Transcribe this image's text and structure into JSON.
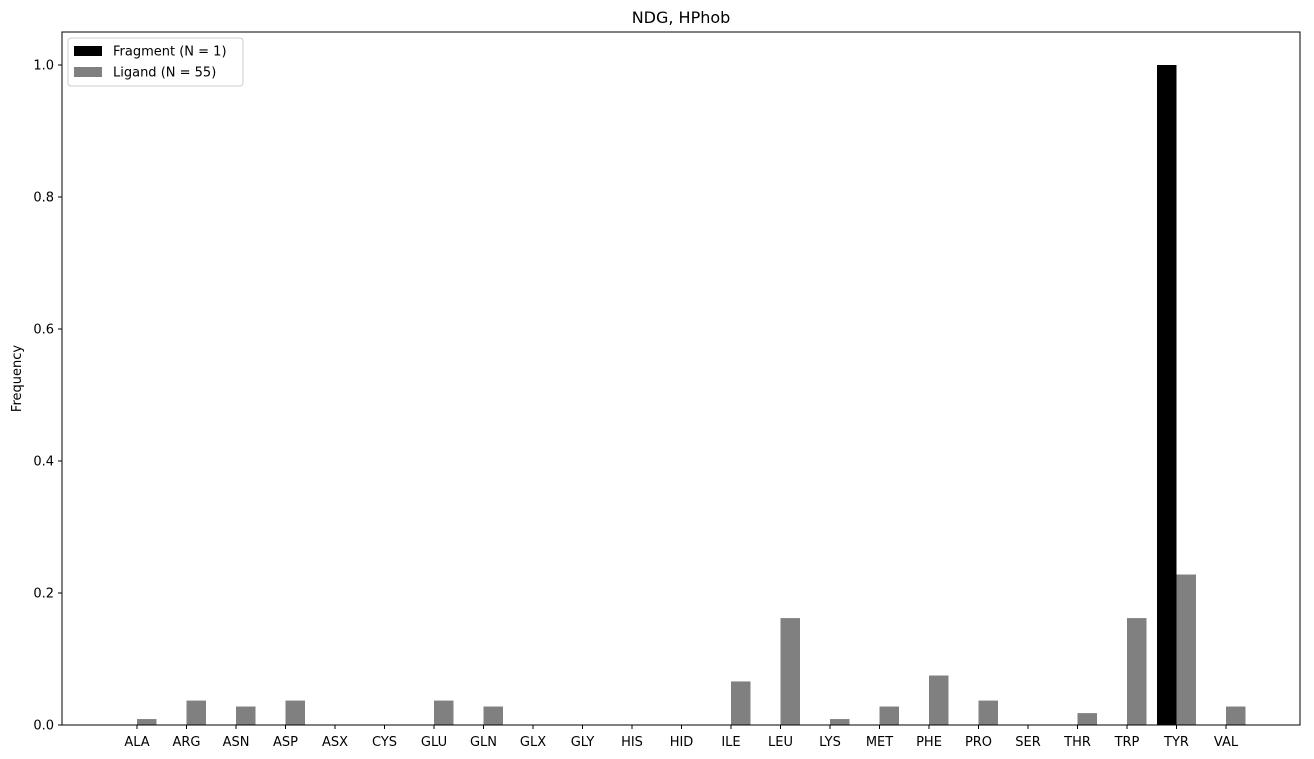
{
  "chart_data": {
    "type": "bar",
    "title": "NDG, HPhob",
    "xlabel": "",
    "ylabel": "Frequency",
    "ylim": [
      0,
      1.05
    ],
    "yticks": [
      "0.0",
      "0.2",
      "0.4",
      "0.6",
      "0.8",
      "1.0"
    ],
    "grid": false,
    "legend_position": "top-left",
    "categories": [
      "ALA",
      "ARG",
      "ASN",
      "ASP",
      "ASX",
      "CYS",
      "GLU",
      "GLN",
      "GLX",
      "GLY",
      "HIS",
      "HID",
      "ILE",
      "LEU",
      "LYS",
      "MET",
      "PHE",
      "PRO",
      "SER",
      "THR",
      "TRP",
      "TYR",
      "VAL"
    ],
    "series": [
      {
        "name": "Fragment (N = 1)",
        "color": "#000000",
        "values": [
          0,
          0,
          0,
          0,
          0,
          0,
          0,
          0,
          0,
          0,
          0,
          0,
          0,
          0,
          0,
          0,
          0,
          0,
          0,
          0,
          0,
          1.0,
          0
        ]
      },
      {
        "name": "Ligand (N = 55)",
        "color": "#808080",
        "values": [
          0.009,
          0.037,
          0.028,
          0.037,
          0,
          0,
          0.037,
          0.028,
          0,
          0,
          0,
          0,
          0.066,
          0.162,
          0.009,
          0.028,
          0.075,
          0.037,
          0,
          0.018,
          0.162,
          0.228,
          0.028
        ]
      }
    ]
  }
}
